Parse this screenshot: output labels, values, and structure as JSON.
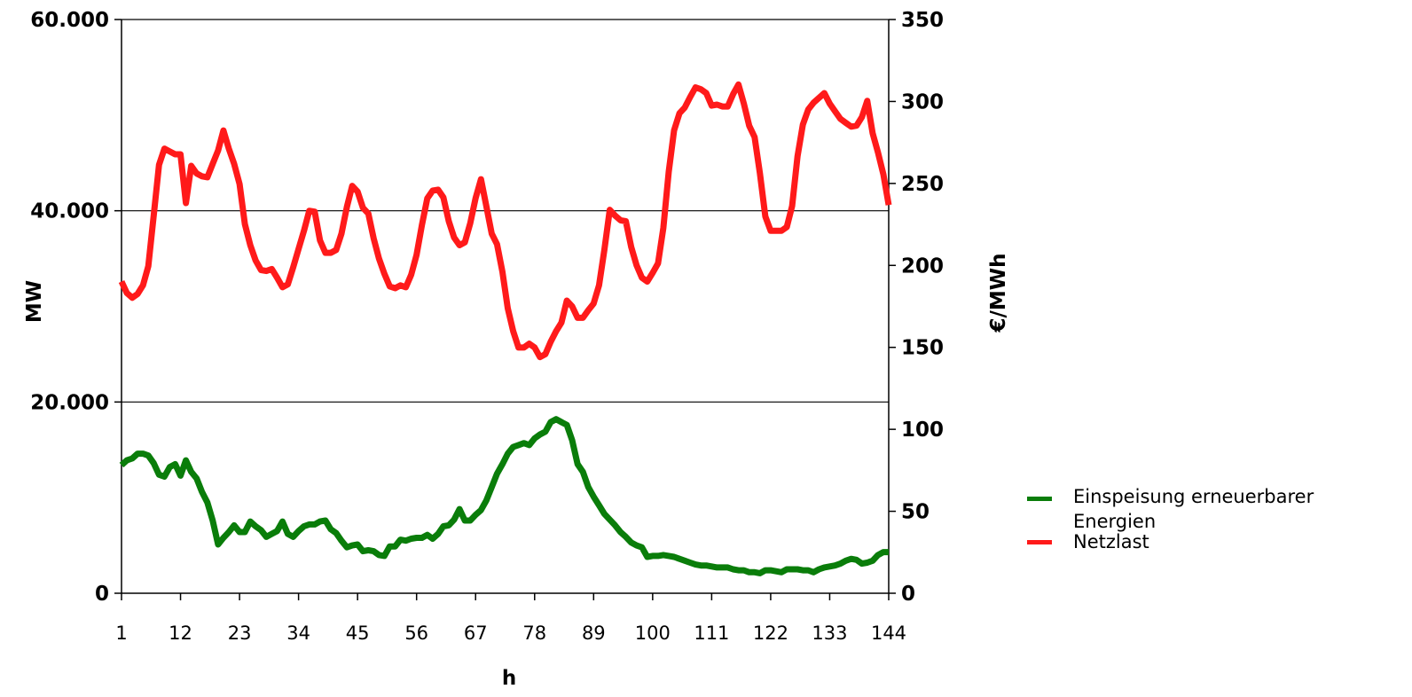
{
  "chart_data": {
    "type": "line",
    "xlabel": "h",
    "ylabel_left": "MW",
    "ylabel_right": "€/MWh",
    "ylim_left": [
      0,
      60000
    ],
    "ylim_right": [
      0,
      350
    ],
    "yticks_left": [
      "0",
      "20.000",
      "40.000",
      "60.000"
    ],
    "yticks_right": [
      "0",
      "50",
      "100",
      "150",
      "200",
      "250",
      "300",
      "350"
    ],
    "xticks": [
      "1",
      "12",
      "23",
      "34",
      "45",
      "56",
      "67",
      "78",
      "89",
      "100",
      "111",
      "122",
      "133",
      "144"
    ],
    "xtick_values": [
      1,
      12,
      23,
      34,
      45,
      56,
      67,
      78,
      89,
      100,
      111,
      122,
      133,
      144
    ],
    "xlim": [
      1,
      144
    ],
    "grid": "horizontal",
    "legend_position": "right",
    "series": [
      {
        "name": "Einspeisung erneuerbarer Energien",
        "axis": "left",
        "color": "#0a7d0a",
        "points": [
          [
            1,
            13400
          ],
          [
            2,
            13900
          ],
          [
            3,
            14100
          ],
          [
            4,
            14600
          ],
          [
            5,
            14600
          ],
          [
            6,
            14400
          ],
          [
            7,
            13600
          ],
          [
            8,
            12400
          ],
          [
            9,
            12200
          ],
          [
            10,
            13200
          ],
          [
            11,
            13500
          ],
          [
            12,
            12300
          ],
          [
            13,
            13900
          ],
          [
            14,
            12700
          ],
          [
            15,
            12000
          ],
          [
            16,
            10600
          ],
          [
            17,
            9500
          ],
          [
            18,
            7600
          ],
          [
            19,
            5100
          ],
          [
            20,
            5800
          ],
          [
            21,
            6400
          ],
          [
            22,
            7100
          ],
          [
            23,
            6400
          ],
          [
            24,
            6400
          ],
          [
            25,
            7500
          ],
          [
            26,
            7000
          ],
          [
            27,
            6600
          ],
          [
            28,
            5900
          ],
          [
            29,
            6200
          ],
          [
            30,
            6500
          ],
          [
            31,
            7500
          ],
          [
            32,
            6200
          ],
          [
            33,
            5900
          ],
          [
            34,
            6500
          ],
          [
            35,
            7000
          ],
          [
            36,
            7200
          ],
          [
            37,
            7200
          ],
          [
            38,
            7500
          ],
          [
            39,
            7600
          ],
          [
            40,
            6700
          ],
          [
            41,
            6300
          ],
          [
            42,
            5500
          ],
          [
            43,
            4800
          ],
          [
            44,
            5000
          ],
          [
            45,
            5100
          ],
          [
            46,
            4400
          ],
          [
            47,
            4500
          ],
          [
            48,
            4400
          ],
          [
            49,
            4000
          ],
          [
            50,
            3900
          ],
          [
            51,
            4900
          ],
          [
            52,
            4900
          ],
          [
            53,
            5600
          ],
          [
            54,
            5500
          ],
          [
            55,
            5700
          ],
          [
            56,
            5800
          ],
          [
            57,
            5800
          ],
          [
            58,
            6100
          ],
          [
            59,
            5700
          ],
          [
            60,
            6200
          ],
          [
            61,
            7000
          ],
          [
            62,
            7100
          ],
          [
            63,
            7700
          ],
          [
            64,
            8800
          ],
          [
            65,
            7600
          ],
          [
            66,
            7600
          ],
          [
            67,
            8200
          ],
          [
            68,
            8700
          ],
          [
            69,
            9700
          ],
          [
            70,
            11100
          ],
          [
            71,
            12500
          ],
          [
            72,
            13500
          ],
          [
            73,
            14600
          ],
          [
            74,
            15300
          ],
          [
            75,
            15500
          ],
          [
            76,
            15700
          ],
          [
            77,
            15500
          ],
          [
            78,
            16200
          ],
          [
            79,
            16600
          ],
          [
            80,
            16900
          ],
          [
            81,
            17900
          ],
          [
            82,
            18200
          ],
          [
            83,
            17900
          ],
          [
            84,
            17600
          ],
          [
            85,
            16000
          ],
          [
            86,
            13500
          ],
          [
            87,
            12700
          ],
          [
            88,
            11100
          ],
          [
            89,
            10100
          ],
          [
            90,
            9200
          ],
          [
            91,
            8300
          ],
          [
            92,
            7700
          ],
          [
            93,
            7100
          ],
          [
            94,
            6400
          ],
          [
            95,
            5900
          ],
          [
            96,
            5300
          ],
          [
            97,
            5000
          ],
          [
            98,
            4800
          ],
          [
            99,
            3800
          ],
          [
            100,
            3900
          ],
          [
            101,
            3900
          ],
          [
            102,
            4000
          ],
          [
            103,
            3900
          ],
          [
            104,
            3800
          ],
          [
            105,
            3600
          ],
          [
            106,
            3400
          ],
          [
            107,
            3200
          ],
          [
            108,
            3000
          ],
          [
            109,
            2900
          ],
          [
            110,
            2900
          ],
          [
            111,
            2800
          ],
          [
            112,
            2700
          ],
          [
            113,
            2700
          ],
          [
            114,
            2700
          ],
          [
            115,
            2500
          ],
          [
            116,
            2400
          ],
          [
            117,
            2400
          ],
          [
            118,
            2200
          ],
          [
            119,
            2200
          ],
          [
            120,
            2100
          ],
          [
            121,
            2400
          ],
          [
            122,
            2400
          ],
          [
            123,
            2300
          ],
          [
            124,
            2200
          ],
          [
            125,
            2500
          ],
          [
            126,
            2500
          ],
          [
            127,
            2500
          ],
          [
            128,
            2400
          ],
          [
            129,
            2400
          ],
          [
            130,
            2200
          ],
          [
            131,
            2500
          ],
          [
            132,
            2700
          ],
          [
            133,
            2800
          ],
          [
            134,
            2900
          ],
          [
            135,
            3100
          ],
          [
            136,
            3400
          ],
          [
            137,
            3600
          ],
          [
            138,
            3500
          ],
          [
            139,
            3100
          ],
          [
            140,
            3200
          ],
          [
            141,
            3400
          ],
          [
            142,
            4000
          ],
          [
            143,
            4300
          ],
          [
            144,
            4300
          ]
        ]
      },
      {
        "name": "Netzlast",
        "axis": "left",
        "color": "#ff1a1a",
        "points": [
          [
            1,
            32600
          ],
          [
            2,
            31400
          ],
          [
            3,
            30900
          ],
          [
            4,
            31300
          ],
          [
            5,
            32200
          ],
          [
            6,
            34200
          ],
          [
            7,
            39500
          ],
          [
            8,
            44800
          ],
          [
            9,
            46500
          ],
          [
            10,
            46200
          ],
          [
            11,
            45900
          ],
          [
            12,
            45900
          ],
          [
            13,
            40800
          ],
          [
            14,
            44700
          ],
          [
            15,
            43900
          ],
          [
            16,
            43600
          ],
          [
            17,
            43500
          ],
          [
            18,
            44900
          ],
          [
            19,
            46300
          ],
          [
            20,
            48400
          ],
          [
            21,
            46500
          ],
          [
            22,
            44900
          ],
          [
            23,
            42800
          ],
          [
            24,
            38600
          ],
          [
            25,
            36400
          ],
          [
            26,
            34800
          ],
          [
            27,
            33800
          ],
          [
            28,
            33700
          ],
          [
            29,
            33900
          ],
          [
            30,
            33000
          ],
          [
            31,
            32000
          ],
          [
            32,
            32300
          ],
          [
            33,
            34100
          ],
          [
            34,
            36000
          ],
          [
            35,
            37900
          ],
          [
            36,
            40000
          ],
          [
            37,
            39900
          ],
          [
            38,
            36900
          ],
          [
            39,
            35600
          ],
          [
            40,
            35600
          ],
          [
            41,
            35900
          ],
          [
            42,
            37600
          ],
          [
            43,
            40400
          ],
          [
            44,
            42600
          ],
          [
            45,
            42000
          ],
          [
            46,
            40300
          ],
          [
            47,
            39700
          ],
          [
            48,
            37100
          ],
          [
            49,
            35000
          ],
          [
            50,
            33400
          ],
          [
            51,
            32100
          ],
          [
            52,
            31900
          ],
          [
            53,
            32200
          ],
          [
            54,
            32000
          ],
          [
            55,
            33300
          ],
          [
            56,
            35400
          ],
          [
            57,
            38500
          ],
          [
            58,
            41300
          ],
          [
            59,
            42100
          ],
          [
            60,
            42200
          ],
          [
            61,
            41400
          ],
          [
            62,
            38900
          ],
          [
            63,
            37200
          ],
          [
            64,
            36400
          ],
          [
            65,
            36700
          ],
          [
            66,
            38700
          ],
          [
            67,
            41300
          ],
          [
            68,
            43300
          ],
          [
            69,
            40500
          ],
          [
            70,
            37600
          ],
          [
            71,
            36500
          ],
          [
            72,
            33600
          ],
          [
            73,
            29800
          ],
          [
            74,
            27400
          ],
          [
            75,
            25700
          ],
          [
            76,
            25700
          ],
          [
            77,
            26100
          ],
          [
            78,
            25700
          ],
          [
            79,
            24700
          ],
          [
            80,
            25000
          ],
          [
            81,
            26300
          ],
          [
            82,
            27400
          ],
          [
            83,
            28300
          ],
          [
            84,
            30600
          ],
          [
            85,
            30000
          ],
          [
            86,
            28800
          ],
          [
            87,
            28800
          ],
          [
            88,
            29600
          ],
          [
            89,
            30300
          ],
          [
            90,
            32200
          ],
          [
            91,
            35900
          ],
          [
            92,
            40100
          ],
          [
            93,
            39500
          ],
          [
            94,
            39000
          ],
          [
            95,
            38900
          ],
          [
            96,
            36200
          ],
          [
            97,
            34300
          ],
          [
            98,
            33000
          ],
          [
            99,
            32600
          ],
          [
            100,
            33500
          ],
          [
            101,
            34500
          ],
          [
            102,
            38200
          ],
          [
            103,
            44100
          ],
          [
            104,
            48400
          ],
          [
            105,
            50200
          ],
          [
            106,
            50800
          ],
          [
            107,
            51900
          ],
          [
            108,
            52900
          ],
          [
            109,
            52700
          ],
          [
            110,
            52300
          ],
          [
            111,
            51000
          ],
          [
            112,
            51100
          ],
          [
            113,
            50900
          ],
          [
            114,
            50900
          ],
          [
            115,
            52200
          ],
          [
            116,
            53200
          ],
          [
            117,
            51200
          ],
          [
            118,
            48900
          ],
          [
            119,
            47700
          ],
          [
            120,
            43900
          ],
          [
            121,
            39400
          ],
          [
            122,
            37900
          ],
          [
            123,
            37900
          ],
          [
            124,
            37900
          ],
          [
            125,
            38300
          ],
          [
            126,
            40500
          ],
          [
            127,
            45700
          ],
          [
            128,
            49000
          ],
          [
            129,
            50600
          ],
          [
            130,
            51300
          ],
          [
            131,
            51800
          ],
          [
            132,
            52300
          ],
          [
            133,
            51200
          ],
          [
            134,
            50400
          ],
          [
            135,
            49600
          ],
          [
            136,
            49200
          ],
          [
            137,
            48800
          ],
          [
            138,
            48900
          ],
          [
            139,
            49800
          ],
          [
            140,
            51500
          ],
          [
            141,
            48100
          ],
          [
            142,
            46100
          ],
          [
            143,
            43800
          ],
          [
            144,
            40600
          ]
        ]
      }
    ]
  }
}
